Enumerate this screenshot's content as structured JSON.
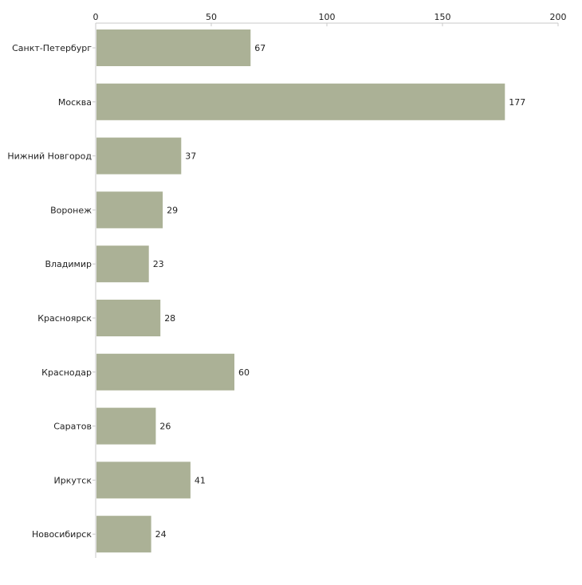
{
  "chart_data": {
    "type": "bar",
    "orientation": "horizontal",
    "title": "",
    "xlabel": "",
    "ylabel": "",
    "xlim": [
      0,
      200
    ],
    "x_ticks": [
      0,
      50,
      100,
      150,
      200
    ],
    "x_tick_labels": [
      "0",
      "50",
      "100",
      "150",
      "200"
    ],
    "grid": false,
    "categories": [
      "Санкт-Петербург",
      "Москва",
      "Нижний Новгород",
      "Воронеж",
      "Владимир",
      "Красноярск",
      "Краснодар",
      "Саратов",
      "Иркутск",
      "Новосибирск"
    ],
    "values": [
      67,
      177,
      37,
      29,
      23,
      28,
      60,
      26,
      41,
      24
    ],
    "data_labels": [
      "67",
      "177",
      "37",
      "29",
      "23",
      "28",
      "60",
      "26",
      "41",
      "24"
    ],
    "bar_color": "#abb196",
    "axis_color": "#c8c8c8"
  }
}
